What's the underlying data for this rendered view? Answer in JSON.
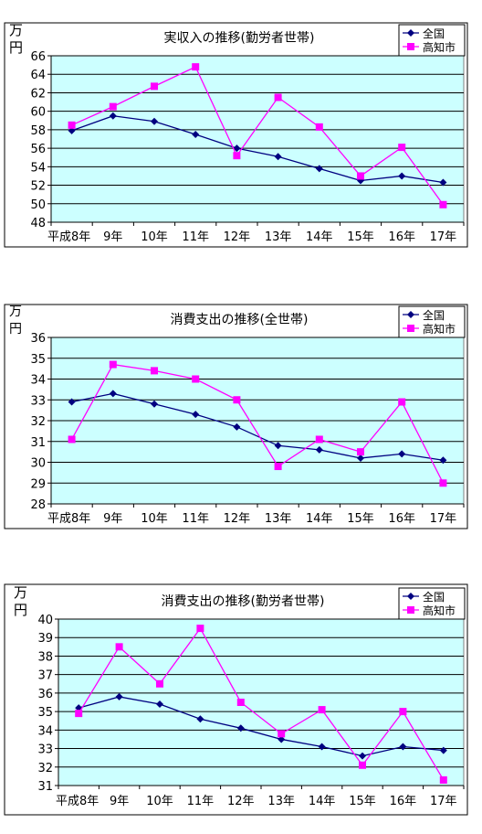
{
  "chart_data": [
    {
      "type": "line",
      "title": "実収入の推移(勤労者世帯)",
      "unit": "万円",
      "categories": [
        "平成8年",
        "9年",
        "10年",
        "11年",
        "12年",
        "13年",
        "14年",
        "15年",
        "16年",
        "17年"
      ],
      "ylim": [
        48,
        66
      ],
      "ystep": 2,
      "grid": true,
      "legend_position": "top-right",
      "series": [
        {
          "name": "全国",
          "color": "#000080",
          "marker": "diamond",
          "values": [
            57.9,
            59.5,
            58.9,
            57.5,
            56.0,
            55.1,
            53.8,
            52.5,
            53.0,
            52.3
          ]
        },
        {
          "name": "高知市",
          "color": "#ff00ff",
          "marker": "square",
          "values": [
            58.5,
            60.5,
            62.7,
            64.8,
            55.2,
            61.5,
            58.3,
            53.0,
            56.1,
            49.9
          ]
        }
      ]
    },
    {
      "type": "line",
      "title": "消費支出の推移(全世帯)",
      "unit": "万円",
      "categories": [
        "平成8年",
        "9年",
        "10年",
        "11年",
        "12年",
        "13年",
        "14年",
        "15年",
        "16年",
        "17年"
      ],
      "ylim": [
        28,
        36
      ],
      "ystep": 1,
      "grid": true,
      "legend_position": "top-right",
      "series": [
        {
          "name": "全国",
          "color": "#000080",
          "marker": "diamond",
          "values": [
            32.9,
            33.3,
            32.8,
            32.3,
            31.7,
            30.8,
            30.6,
            30.2,
            30.4,
            30.1
          ]
        },
        {
          "name": "高知市",
          "color": "#ff00ff",
          "marker": "square",
          "values": [
            31.1,
            34.7,
            34.4,
            34.0,
            33.0,
            29.8,
            31.1,
            30.5,
            32.9,
            29.0
          ]
        }
      ]
    },
    {
      "type": "line",
      "title": "消費支出の推移(勤労者世帯)",
      "unit": "万円",
      "categories": [
        "平成8年",
        "9年",
        "10年",
        "11年",
        "12年",
        "13年",
        "14年",
        "15年",
        "16年",
        "17年"
      ],
      "ylim": [
        31,
        40
      ],
      "ystep": 1,
      "grid": true,
      "legend_position": "top-right",
      "series": [
        {
          "name": "全国",
          "color": "#000080",
          "marker": "diamond",
          "values": [
            35.2,
            35.8,
            35.4,
            34.6,
            34.1,
            33.5,
            33.1,
            32.6,
            33.1,
            32.9
          ]
        },
        {
          "name": "高知市",
          "color": "#ff00ff",
          "marker": "square",
          "values": [
            34.9,
            38.5,
            36.5,
            39.5,
            35.5,
            33.8,
            35.1,
            32.1,
            35.0,
            31.3
          ]
        }
      ]
    }
  ]
}
